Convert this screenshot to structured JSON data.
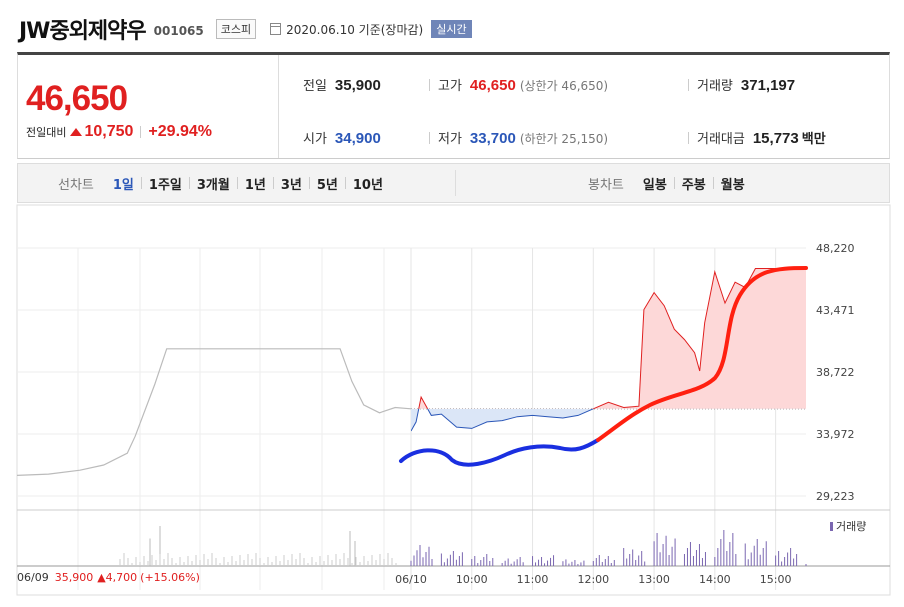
{
  "header": {
    "stock_name": "JW중외제약우",
    "stock_code": "001065",
    "market": "코스피",
    "date_text": "2020.06.10  기준(장마감)",
    "realtime": "실시간"
  },
  "current": {
    "price": "46,650",
    "change_label": "전일대비",
    "change_value": "10,750",
    "change_pct": "+29.94%"
  },
  "stats": {
    "prev_close": {
      "label": "전일",
      "value": "35,900"
    },
    "high": {
      "label": "고가",
      "value": "46,650",
      "sub": "(상한가 46,650)"
    },
    "volume": {
      "label": "거래량",
      "value": "371,197"
    },
    "open": {
      "label": "시가",
      "value": "34,900"
    },
    "low": {
      "label": "저가",
      "value": "33,700",
      "sub": "(하한가 25,150)"
    },
    "turnover": {
      "label": "거래대금",
      "value": "15,773",
      "unit": "백만"
    }
  },
  "tabs": {
    "period_title": "선차트",
    "periods": [
      "1일",
      "1주일",
      "3개월",
      "1년",
      "3년",
      "5년",
      "10년"
    ],
    "candle_title": "봉차트",
    "candles": [
      "일봉",
      "주봉",
      "월봉"
    ]
  },
  "colors": {
    "up": "#e02020",
    "down": "#2b57b8",
    "drawn_blue": "#1a2fe0",
    "drawn_red": "#ff2010",
    "volume": "#7a66b0"
  },
  "chart_data": {
    "type": "line",
    "y_ticks": [
      "48,220",
      "43,471",
      "38,722",
      "33,972",
      "29,223"
    ],
    "ylim": [
      29223,
      48220
    ],
    "x_ticks": [
      "06/10",
      "10:00",
      "11:00",
      "12:00",
      "13:00",
      "14:00",
      "15:00"
    ],
    "baseline": 35900,
    "prev_day_series": {
      "x": [
        0,
        0.08,
        0.16,
        0.22,
        0.28,
        0.3,
        0.35,
        0.38,
        0.45,
        0.55,
        0.65,
        0.75,
        0.82,
        0.85,
        0.88,
        0.92,
        0.96,
        1.0
      ],
      "y": [
        30800,
        30900,
        31200,
        31600,
        32500,
        33800,
        37800,
        40500,
        40500,
        40500,
        40500,
        40500,
        40500,
        38000,
        36200,
        35600,
        36000,
        35900
      ]
    },
    "today_series": {
      "time": [
        "09:00",
        "09:05",
        "09:10",
        "09:20",
        "09:30",
        "09:45",
        "10:00",
        "10:15",
        "10:30",
        "10:45",
        "11:00",
        "11:15",
        "11:30",
        "11:45",
        "12:00",
        "12:15",
        "12:30",
        "12:45",
        "12:50",
        "13:00",
        "13:10",
        "13:20",
        "13:30",
        "13:40",
        "13:45",
        "13:50",
        "14:00",
        "14:10",
        "14:20",
        "14:30",
        "14:40",
        "14:50",
        "15:00",
        "15:10",
        "15:20",
        "15:30"
      ],
      "y": [
        34200,
        34900,
        36800,
        35400,
        35500,
        34500,
        34400,
        34900,
        35000,
        35300,
        35400,
        35300,
        35200,
        35400,
        35900,
        36400,
        36000,
        36100,
        43500,
        44800,
        43800,
        42000,
        41200,
        40200,
        38800,
        42500,
        46400,
        44000,
        45600,
        45200,
        46650,
        46650,
        46650,
        46650,
        46650,
        46650
      ]
    },
    "volume_series": {
      "time": [
        "09:00",
        "09:30",
        "10:00",
        "10:30",
        "11:00",
        "11:30",
        "12:00",
        "12:30",
        "13:00",
        "13:30",
        "14:00",
        "14:30",
        "15:00",
        "15:30"
      ],
      "values": [
        0.35,
        0.25,
        0.2,
        0.15,
        0.18,
        0.12,
        0.2,
        0.3,
        0.55,
        0.4,
        0.6,
        0.45,
        0.3,
        0.1
      ]
    },
    "prev_volume_peaks": [
      0.55,
      0.8,
      0.7,
      0.5
    ],
    "bottom_info": {
      "date": "06/09",
      "price": "35,900",
      "change": "▲4,700",
      "pct": "(+15.06%)"
    },
    "volume_legend": "거래량",
    "grid": true
  }
}
